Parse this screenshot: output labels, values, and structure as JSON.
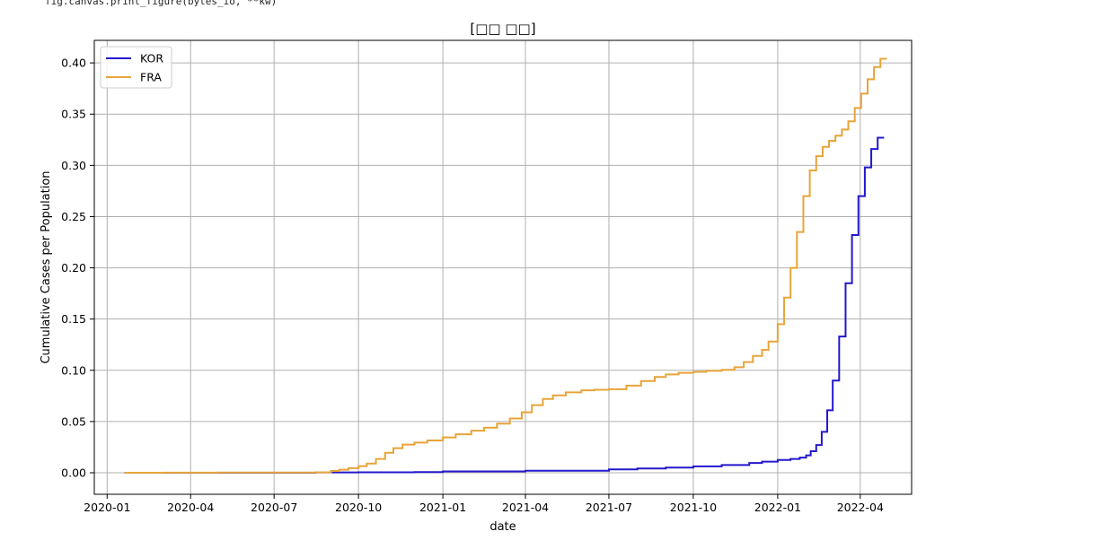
{
  "code_snippet": "fig.canvas.print_figure(bytes_io, **kw)",
  "chart_data": {
    "type": "line",
    "title": "[□□ □□]",
    "xlabel": "date",
    "ylabel": "Cumulative Cases per Population",
    "xlim": [
      "2019-12-18",
      "2022-05-27"
    ],
    "ylim": [
      -0.021,
      0.422
    ],
    "x_ticks": [
      "2020-01",
      "2020-04",
      "2020-07",
      "2020-10",
      "2021-01",
      "2021-04",
      "2021-07",
      "2021-10",
      "2022-01",
      "2022-04"
    ],
    "y_ticks": [
      "0.00",
      "0.05",
      "0.10",
      "0.15",
      "0.20",
      "0.25",
      "0.30",
      "0.35",
      "0.40"
    ],
    "grid": true,
    "legend_position": "top-left",
    "series": [
      {
        "name": "KOR",
        "color": "#2418cc",
        "step": true,
        "points": [
          [
            "2020-01-20",
            0.0
          ],
          [
            "2020-08-15",
            0.0003
          ],
          [
            "2020-10-01",
            0.0005
          ],
          [
            "2020-12-01",
            0.0007
          ],
          [
            "2021-01-01",
            0.0013
          ],
          [
            "2021-04-01",
            0.002
          ],
          [
            "2021-07-01",
            0.0033
          ],
          [
            "2021-08-01",
            0.0042
          ],
          [
            "2021-09-01",
            0.005
          ],
          [
            "2021-10-01",
            0.0063
          ],
          [
            "2021-11-01",
            0.0076
          ],
          [
            "2021-12-01",
            0.0095
          ],
          [
            "2021-12-15",
            0.0108
          ],
          [
            "2022-01-01",
            0.0125
          ],
          [
            "2022-01-15",
            0.0135
          ],
          [
            "2022-01-25",
            0.0148
          ],
          [
            "2022-02-01",
            0.017
          ],
          [
            "2022-02-06",
            0.021
          ],
          [
            "2022-02-12",
            0.027
          ],
          [
            "2022-02-18",
            0.04
          ],
          [
            "2022-02-24",
            0.061
          ],
          [
            "2022-03-02",
            0.09
          ],
          [
            "2022-03-09",
            0.133
          ],
          [
            "2022-03-16",
            0.185
          ],
          [
            "2022-03-23",
            0.232
          ],
          [
            "2022-03-30",
            0.27
          ],
          [
            "2022-04-06",
            0.298
          ],
          [
            "2022-04-13",
            0.316
          ],
          [
            "2022-04-20",
            0.327
          ],
          [
            "2022-04-27",
            0.327
          ]
        ]
      },
      {
        "name": "FRA",
        "color": "#e8a43a",
        "step": true,
        "points": [
          [
            "2020-01-20",
            0.0
          ],
          [
            "2020-03-01",
            0.0001
          ],
          [
            "2020-05-01",
            0.0002
          ],
          [
            "2020-08-15",
            0.0005
          ],
          [
            "2020-09-01",
            0.0018
          ],
          [
            "2020-09-10",
            0.003
          ],
          [
            "2020-09-20",
            0.0045
          ],
          [
            "2020-10-01",
            0.0065
          ],
          [
            "2020-10-10",
            0.009
          ],
          [
            "2020-10-20",
            0.0135
          ],
          [
            "2020-10-30",
            0.0195
          ],
          [
            "2020-11-08",
            0.024
          ],
          [
            "2020-11-18",
            0.0275
          ],
          [
            "2020-12-01",
            0.0295
          ],
          [
            "2020-12-15",
            0.0315
          ],
          [
            "2021-01-01",
            0.0345
          ],
          [
            "2021-01-15",
            0.0375
          ],
          [
            "2021-02-01",
            0.041
          ],
          [
            "2021-02-15",
            0.044
          ],
          [
            "2021-03-01",
            0.048
          ],
          [
            "2021-03-15",
            0.053
          ],
          [
            "2021-03-28",
            0.059
          ],
          [
            "2021-04-08",
            0.066
          ],
          [
            "2021-04-20",
            0.072
          ],
          [
            "2021-05-01",
            0.0755
          ],
          [
            "2021-05-15",
            0.0785
          ],
          [
            "2021-06-01",
            0.0805
          ],
          [
            "2021-06-15",
            0.081
          ],
          [
            "2021-07-01",
            0.0815
          ],
          [
            "2021-07-20",
            0.085
          ],
          [
            "2021-08-05",
            0.0895
          ],
          [
            "2021-08-20",
            0.0935
          ],
          [
            "2021-09-01",
            0.096
          ],
          [
            "2021-09-15",
            0.0975
          ],
          [
            "2021-10-01",
            0.0985
          ],
          [
            "2021-10-15",
            0.0995
          ],
          [
            "2021-11-01",
            0.1005
          ],
          [
            "2021-11-15",
            0.103
          ],
          [
            "2021-11-25",
            0.108
          ],
          [
            "2021-12-05",
            0.114
          ],
          [
            "2021-12-15",
            0.12
          ],
          [
            "2021-12-22",
            0.128
          ],
          [
            "2022-01-01",
            0.145
          ],
          [
            "2022-01-08",
            0.171
          ],
          [
            "2022-01-15",
            0.2
          ],
          [
            "2022-01-22",
            0.235
          ],
          [
            "2022-01-29",
            0.27
          ],
          [
            "2022-02-05",
            0.295
          ],
          [
            "2022-02-12",
            0.309
          ],
          [
            "2022-02-19",
            0.318
          ],
          [
            "2022-02-26",
            0.324
          ],
          [
            "2022-03-05",
            0.329
          ],
          [
            "2022-03-12",
            0.335
          ],
          [
            "2022-03-19",
            0.343
          ],
          [
            "2022-03-26",
            0.356
          ],
          [
            "2022-04-02",
            0.37
          ],
          [
            "2022-04-09",
            0.384
          ],
          [
            "2022-04-16",
            0.396
          ],
          [
            "2022-04-23",
            0.404
          ],
          [
            "2022-04-30",
            0.404
          ]
        ]
      }
    ]
  }
}
